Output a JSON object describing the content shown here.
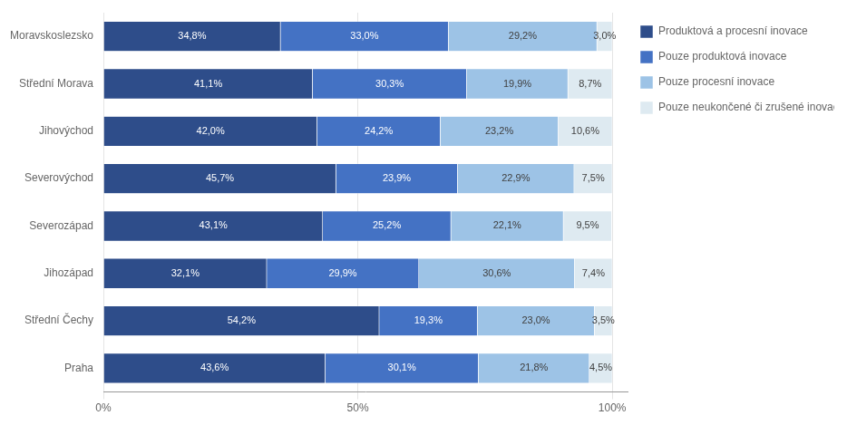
{
  "chart_data": {
    "type": "bar",
    "orientation": "horizontal",
    "stacked": true,
    "categories": [
      "Praha",
      "Střední Čechy",
      "Jihozápad",
      "Severozápad",
      "Severovýchod",
      "Jihovýchod",
      "Střední Morava",
      "Moravskoslezsko"
    ],
    "series": [
      {
        "name": "Produktová a procesní inovace",
        "color": "#2E4D8A",
        "values": [
          43.6,
          54.2,
          32.1,
          43.1,
          45.7,
          42.0,
          41.1,
          34.8
        ],
        "value_labels": [
          "43,6%",
          "54,2%",
          "32,1%",
          "43,1%",
          "45,7%",
          "42,0%",
          "41,1%",
          "34,8%"
        ]
      },
      {
        "name": "Pouze produktová inovace",
        "color": "#4472C4",
        "values": [
          30.1,
          19.3,
          29.9,
          25.2,
          23.9,
          24.2,
          30.3,
          33.0
        ],
        "value_labels": [
          "30,1%",
          "19,3%",
          "29,9%",
          "25,2%",
          "23,9%",
          "24,2%",
          "30,3%",
          "33,0%"
        ]
      },
      {
        "name": "Pouze procesní inovace",
        "color": "#9DC3E6",
        "values": [
          21.8,
          23.0,
          30.6,
          22.1,
          22.9,
          23.2,
          19.9,
          29.2
        ],
        "value_labels": [
          "21,8%",
          "23,0%",
          "30,6%",
          "22,1%",
          "22,9%",
          "23,2%",
          "19,9%",
          "29,2%"
        ]
      },
      {
        "name": "Pouze neukončené či zrušené inovace",
        "color": "#DEEAF1",
        "values": [
          4.5,
          3.5,
          7.4,
          9.5,
          7.5,
          10.6,
          8.7,
          3.0
        ],
        "value_labels": [
          "4,5%",
          "3,5%",
          "7,4%",
          "9,5%",
          "7,5%",
          "10,6%",
          "8,7%",
          "3,0%"
        ]
      }
    ],
    "xlim": [
      0,
      103
    ],
    "xticks": [
      {
        "value": 0,
        "label": "0%"
      },
      {
        "value": 50,
        "label": "50%"
      },
      {
        "value": 100,
        "label": "100%"
      }
    ],
    "grid": true,
    "legend": "right",
    "data_labels": true
  }
}
